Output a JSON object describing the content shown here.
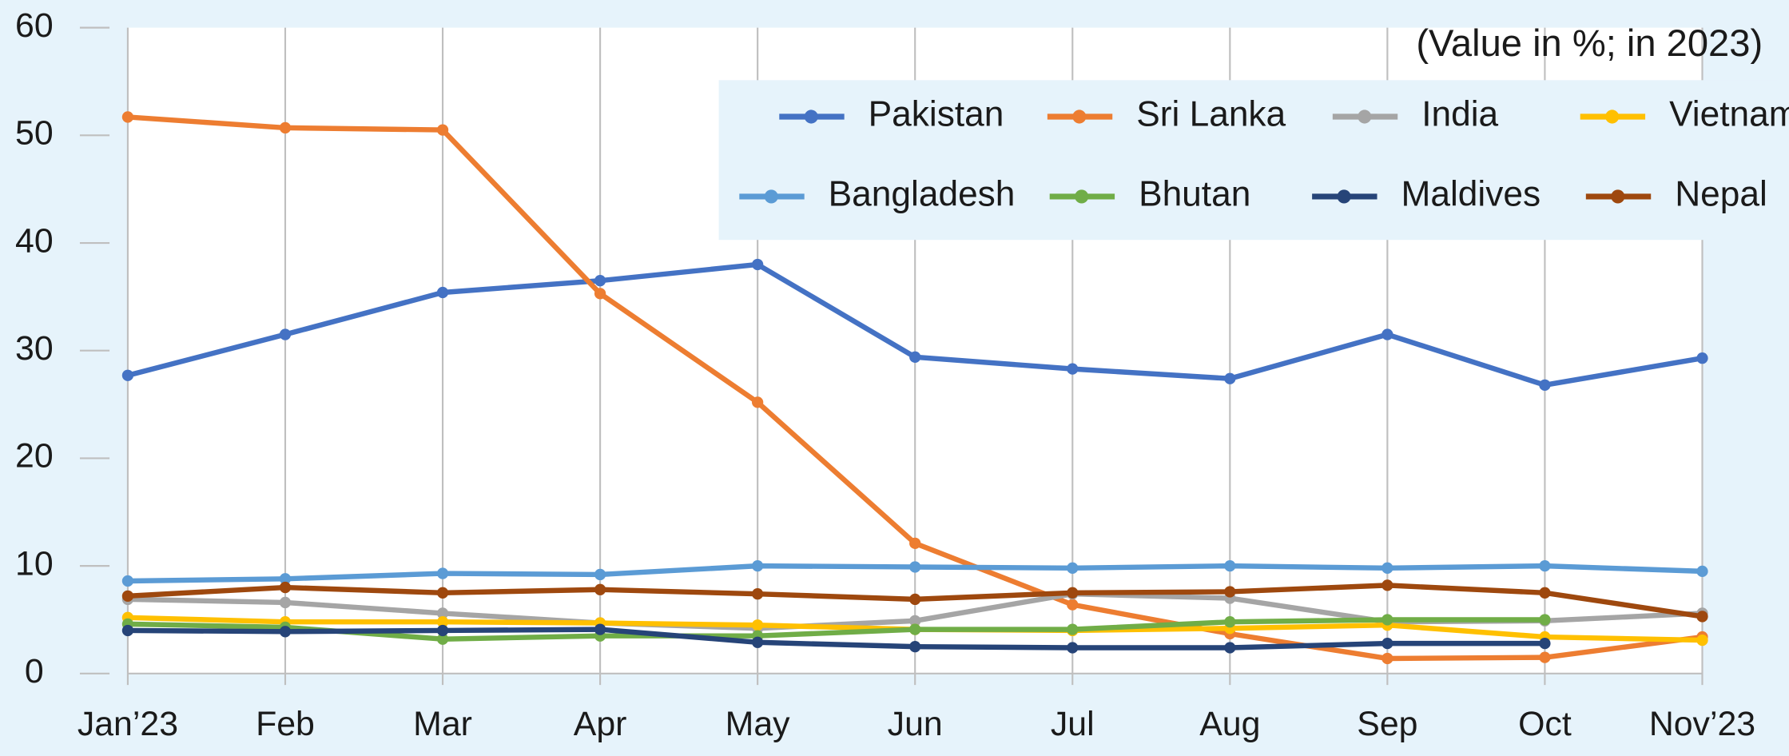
{
  "chart_data": {
    "type": "line",
    "annotation": "(Value in %; in 2023)",
    "categories": [
      "Jan’23",
      "Feb",
      "Mar",
      "Apr",
      "May",
      "Jun",
      "Jul",
      "Aug",
      "Sep",
      "Oct",
      "Nov’23"
    ],
    "ylim": [
      0,
      60
    ],
    "yticks": [
      0,
      10,
      20,
      30,
      40,
      50,
      60
    ],
    "series": [
      {
        "name": "Pakistan",
        "color": "#4472c4",
        "values": [
          27.7,
          31.5,
          35.4,
          36.5,
          38.0,
          29.4,
          28.3,
          27.4,
          31.5,
          26.8,
          29.3
        ]
      },
      {
        "name": "Sri Lanka",
        "color": "#ed7d31",
        "values": [
          51.7,
          50.7,
          50.5,
          35.3,
          25.2,
          12.1,
          6.4,
          3.7,
          1.4,
          1.5,
          3.4
        ]
      },
      {
        "name": "India",
        "color": "#a5a5a5",
        "values": [
          6.9,
          6.6,
          5.6,
          4.7,
          4.2,
          4.9,
          7.4,
          7.0,
          4.8,
          4.9,
          5.6
        ]
      },
      {
        "name": "Vietnam",
        "color": "#ffc000",
        "values": [
          5.2,
          4.8,
          4.8,
          4.7,
          4.5,
          4.1,
          4.0,
          4.2,
          4.5,
          3.4,
          3.1
        ]
      },
      {
        "name": "Bangladesh",
        "color": "#5b9bd5",
        "values": [
          8.6,
          8.8,
          9.3,
          9.2,
          10.0,
          9.9,
          9.8,
          10.0,
          9.8,
          10.0,
          9.5
        ]
      },
      {
        "name": "Bhutan",
        "color": "#70ad47",
        "values": [
          4.6,
          4.3,
          3.2,
          3.5,
          3.5,
          4.1,
          4.1,
          4.8,
          5.0,
          5.0,
          null
        ]
      },
      {
        "name": "Maldives",
        "color": "#264478",
        "values": [
          4.0,
          3.9,
          4.0,
          4.1,
          2.9,
          2.5,
          2.4,
          2.4,
          2.8,
          2.8,
          null
        ]
      },
      {
        "name": "Nepal",
        "color": "#9e480e",
        "values": [
          7.2,
          8.0,
          7.5,
          7.8,
          7.4,
          6.9,
          7.5,
          7.6,
          8.2,
          7.5,
          5.3
        ]
      }
    ]
  }
}
